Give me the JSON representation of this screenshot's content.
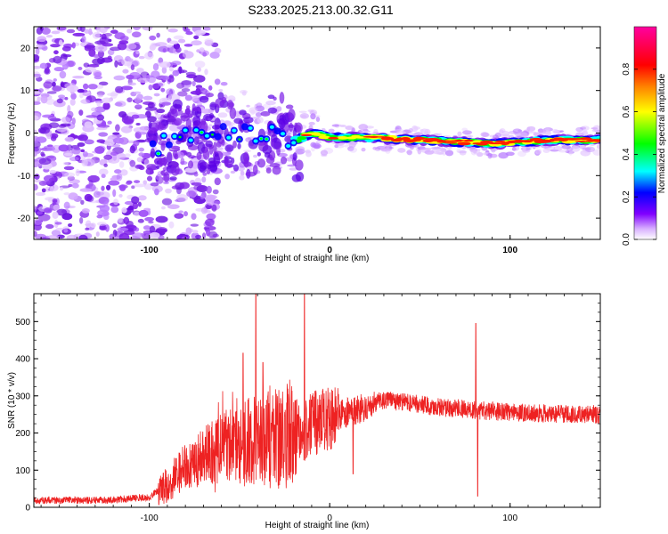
{
  "title": "S233.2025.213.00.32.G11",
  "chart_data": [
    {
      "type": "heatmap",
      "xlabel": "Height of straight line (km)",
      "ylabel": "Frequency (Hz)",
      "xlim": [
        -164,
        150
      ],
      "ylim": [
        -25,
        25
      ],
      "xticks": [
        {
          "value": -100,
          "label": "-100"
        },
        {
          "value": 0,
          "label": "0"
        },
        {
          "value": 100,
          "label": "100"
        }
      ],
      "yticks": [
        {
          "value": 20,
          "label": "20"
        },
        {
          "value": 10,
          "label": "10"
        },
        {
          "value": 0,
          "label": "0"
        },
        {
          "value": -10,
          "label": "-10"
        },
        {
          "value": -20,
          "label": "-20"
        }
      ],
      "colorbar": {
        "label": "Normalized spectral amplitude",
        "range": [
          0,
          1
        ],
        "ticks": [
          {
            "value": 0.0,
            "label": "0.0"
          },
          {
            "value": 0.2,
            "label": "0.2"
          },
          {
            "value": 0.4,
            "label": "0.4"
          },
          {
            "value": 0.6,
            "label": "0.6"
          },
          {
            "value": 0.8,
            "label": "0.8"
          }
        ],
        "colors": [
          "#ffffff",
          "#c060ff",
          "#6000ff",
          "#0000ff",
          "#00ffff",
          "#00ff00",
          "#ffff00",
          "#ff8000",
          "#ff0000",
          "#ff00a0"
        ]
      },
      "band_trend": [
        {
          "x": -100,
          "f": -3.5
        },
        {
          "x": -80,
          "f": -1
        },
        {
          "x": -60,
          "f": 0.5
        },
        {
          "x": -40,
          "f": -1
        },
        {
          "x": -30,
          "f": 0
        },
        {
          "x": -20,
          "f": -2
        },
        {
          "x": -10,
          "f": 0
        },
        {
          "x": 0,
          "f": -1
        },
        {
          "x": 20,
          "f": -1
        },
        {
          "x": 40,
          "f": -1.5
        },
        {
          "x": 70,
          "f": -2
        },
        {
          "x": 90,
          "f": -2.5
        },
        {
          "x": 120,
          "f": -1.7
        },
        {
          "x": 150,
          "f": -1.7
        }
      ]
    },
    {
      "type": "line",
      "xlabel": "Height of straight line (km)",
      "ylabel": "SNR (10 * v/v)",
      "xlim": [
        -164,
        150
      ],
      "ylim": [
        0,
        575
      ],
      "xticks": [
        {
          "value": -100,
          "label": "-100"
        },
        {
          "value": 0,
          "label": "0"
        },
        {
          "value": 100,
          "label": "100"
        }
      ],
      "yticks": [
        {
          "value": 0,
          "label": "0"
        },
        {
          "value": 100,
          "label": "100"
        },
        {
          "value": 200,
          "label": "200"
        },
        {
          "value": 300,
          "label": "300"
        },
        {
          "value": 400,
          "label": "400"
        },
        {
          "value": 500,
          "label": "500"
        }
      ],
      "color": "#ee2222",
      "trend": [
        {
          "x": -164,
          "y": 18
        },
        {
          "x": -120,
          "y": 20
        },
        {
          "x": -100,
          "y": 28
        },
        {
          "x": -90,
          "y": 60
        },
        {
          "x": -80,
          "y": 110
        },
        {
          "x": -60,
          "y": 160
        },
        {
          "x": -40,
          "y": 180
        },
        {
          "x": -20,
          "y": 200
        },
        {
          "x": 0,
          "y": 240
        },
        {
          "x": 20,
          "y": 270
        },
        {
          "x": 30,
          "y": 290
        },
        {
          "x": 60,
          "y": 270
        },
        {
          "x": 100,
          "y": 255
        },
        {
          "x": 150,
          "y": 250
        }
      ],
      "spikes": [
        {
          "x": -48,
          "y": 415
        },
        {
          "x": -41,
          "y": 575
        },
        {
          "x": -37,
          "y": 390
        },
        {
          "x": -14,
          "y": 575
        },
        {
          "x": 81,
          "y": 495
        },
        {
          "x": 82,
          "y": 30
        },
        {
          "x": 13,
          "y": 90
        }
      ]
    }
  ]
}
